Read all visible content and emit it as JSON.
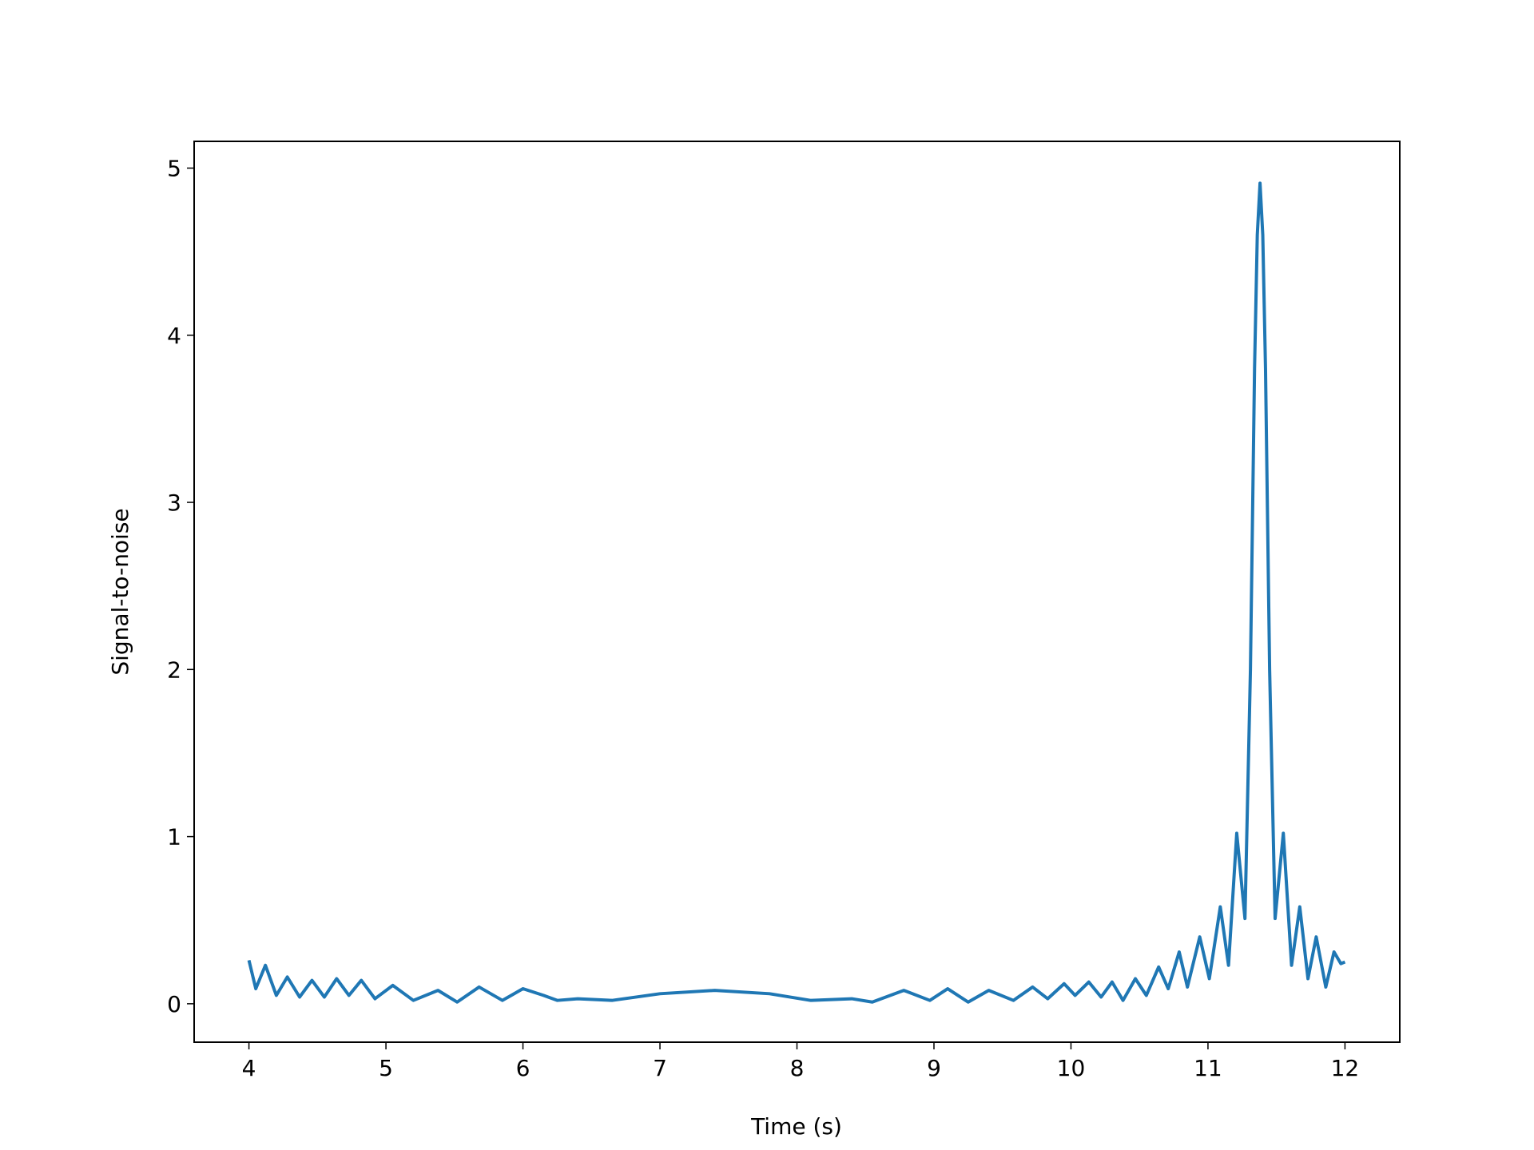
{
  "chart_data": {
    "type": "line",
    "xlabel": "Time (s)",
    "ylabel": "Signal-to-noise",
    "x": [
      4.0,
      4.05,
      4.12,
      4.2,
      4.28,
      4.37,
      4.46,
      4.55,
      4.64,
      4.73,
      4.82,
      4.92,
      5.05,
      5.2,
      5.38,
      5.52,
      5.68,
      5.85,
      6.0,
      6.15,
      6.25,
      6.4,
      6.65,
      7.0,
      7.4,
      7.8,
      8.1,
      8.4,
      8.55,
      8.78,
      8.97,
      9.1,
      9.25,
      9.4,
      9.58,
      9.72,
      9.83,
      9.95,
      10.03,
      10.13,
      10.22,
      10.3,
      10.38,
      10.47,
      10.55,
      10.64,
      10.71,
      10.79,
      10.85,
      10.94,
      11.01,
      11.09,
      11.15,
      11.21,
      11.27,
      11.31,
      11.34,
      11.36,
      11.38,
      11.4,
      11.42,
      11.45,
      11.49,
      11.55,
      11.61,
      11.67,
      11.73,
      11.79,
      11.86,
      11.92,
      11.97,
      12.0
    ],
    "series": [
      {
        "name": "snr",
        "color": "#1f77b4",
        "values": [
          0.26,
          0.09,
          0.23,
          0.05,
          0.16,
          0.04,
          0.14,
          0.04,
          0.15,
          0.05,
          0.14,
          0.03,
          0.11,
          0.02,
          0.08,
          0.01,
          0.1,
          0.02,
          0.09,
          0.05,
          0.02,
          0.03,
          0.02,
          0.06,
          0.08,
          0.06,
          0.02,
          0.03,
          0.01,
          0.08,
          0.02,
          0.09,
          0.01,
          0.08,
          0.02,
          0.1,
          0.03,
          0.12,
          0.05,
          0.13,
          0.04,
          0.13,
          0.02,
          0.15,
          0.05,
          0.22,
          0.09,
          0.31,
          0.1,
          0.4,
          0.15,
          0.58,
          0.23,
          1.02,
          0.51,
          2.0,
          3.8,
          4.6,
          4.91,
          4.6,
          3.8,
          2.0,
          0.51,
          1.02,
          0.23,
          0.58,
          0.15,
          0.4,
          0.1,
          0.31,
          0.24,
          0.25
        ]
      }
    ],
    "xlim": [
      3.6,
      12.4
    ],
    "xticks": [
      4,
      5,
      6,
      7,
      8,
      9,
      10,
      11,
      12
    ],
    "ylim": [
      -0.23,
      5.16
    ],
    "yticks": [
      0,
      1,
      2,
      3,
      4,
      5
    ]
  }
}
